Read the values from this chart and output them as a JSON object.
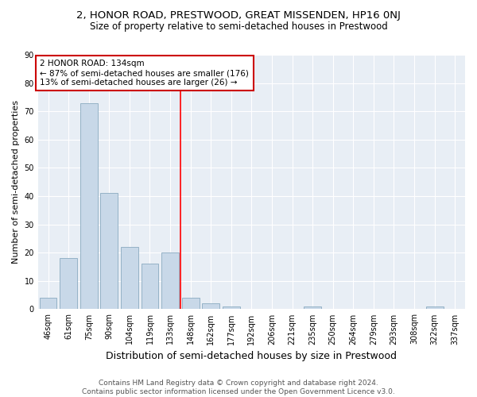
{
  "title": "2, HONOR ROAD, PRESTWOOD, GREAT MISSENDEN, HP16 0NJ",
  "subtitle": "Size of property relative to semi-detached houses in Prestwood",
  "xlabel": "Distribution of semi-detached houses by size in Prestwood",
  "ylabel": "Number of semi-detached properties",
  "categories": [
    "46sqm",
    "61sqm",
    "75sqm",
    "90sqm",
    "104sqm",
    "119sqm",
    "133sqm",
    "148sqm",
    "162sqm",
    "177sqm",
    "192sqm",
    "206sqm",
    "221sqm",
    "235sqm",
    "250sqm",
    "264sqm",
    "279sqm",
    "293sqm",
    "308sqm",
    "322sqm",
    "337sqm"
  ],
  "values": [
    4,
    18,
    73,
    41,
    22,
    16,
    20,
    4,
    2,
    1,
    0,
    0,
    0,
    1,
    0,
    0,
    0,
    0,
    0,
    1,
    0
  ],
  "bar_color": "#c8d8e8",
  "bar_edgecolor": "#8aaac0",
  "ref_line_x": 6.5,
  "ref_line_label": "2 HONOR ROAD: 134sqm",
  "annotation_line1": "← 87% of semi-detached houses are smaller (176)",
  "annotation_line2": "13% of semi-detached houses are larger (26) →",
  "annotation_box_color": "#cc0000",
  "ylim": [
    0,
    90
  ],
  "yticks": [
    0,
    10,
    20,
    30,
    40,
    50,
    60,
    70,
    80,
    90
  ],
  "footer1": "Contains HM Land Registry data © Crown copyright and database right 2024.",
  "footer2": "Contains public sector information licensed under the Open Government Licence v3.0.",
  "bg_color": "#ffffff",
  "plot_bg_color": "#e8eef5",
  "title_fontsize": 9.5,
  "subtitle_fontsize": 8.5,
  "xlabel_fontsize": 9,
  "ylabel_fontsize": 8,
  "tick_fontsize": 7,
  "footer_fontsize": 6.5,
  "annotation_fontsize": 7.5
}
